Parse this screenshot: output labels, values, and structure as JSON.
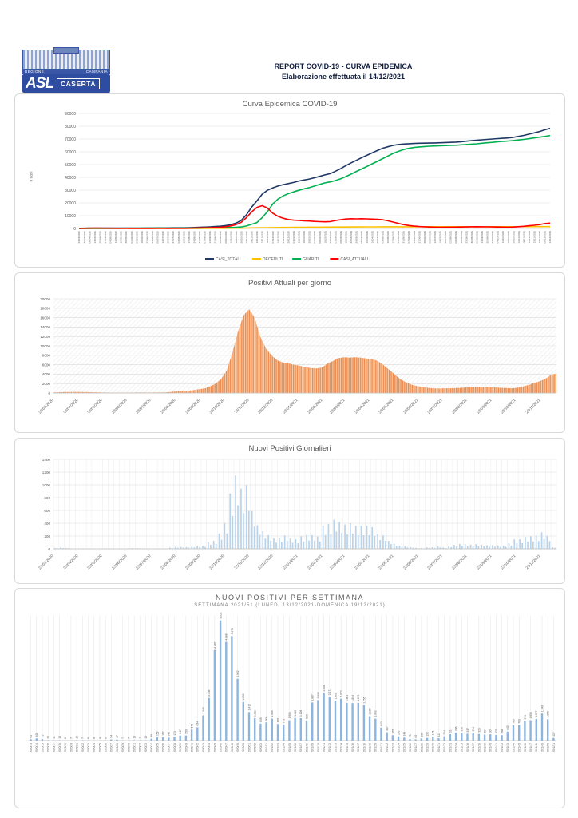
{
  "header": {
    "title_line1": "REPORT COVID-19 - CURVA EPIDEMICA",
    "title_line2": "Elaborazione effettuata il 14/12/2021",
    "logo": {
      "region": "REGIONE",
      "campania": "CAMPANIA",
      "asl": "ASL",
      "caserta": "CASERTA"
    }
  },
  "colors": {
    "casi_totali": "#203864",
    "deceduti": "#FFC000",
    "guariti": "#00B050",
    "casi_attuali": "#FF0000",
    "area_orange_dark": "#EC8A4E",
    "area_orange_light": "#F8CCA8",
    "bar_blue_daily": "#B9D3EA",
    "bar_blue_weekly": "#8DB4DC",
    "grid": "#d9d9d9",
    "grid_light": "#ebebeb",
    "axis_text": "#595959"
  },
  "chart_data": [
    {
      "type": "line",
      "title": "Curva Epidemica COVID-19",
      "ylabel": "n casi",
      "ylim": [
        0,
        90000
      ],
      "ytick_step": 10000,
      "legend_position": "bottom",
      "grid": true,
      "legend": [
        {
          "label": "CASI_TOTALI",
          "color": "#203864"
        },
        {
          "label": "DECEDUTI",
          "color": "#FFC000"
        },
        {
          "label": "GUARITI",
          "color": "#00B050"
        },
        {
          "label": "CASI_ATTUALI",
          "color": "#FF0000"
        }
      ],
      "x": [
        "23/03/2020",
        "30/03/2020",
        "06/04/2020",
        "13/04/2020",
        "20/04/2020",
        "27/04/2020",
        "04/05/2020",
        "11/05/2020",
        "18/05/2020",
        "25/05/2020",
        "01/06/2020",
        "08/06/2020",
        "15/06/2020",
        "22/06/2020",
        "29/06/2020",
        "06/07/2020",
        "13/07/2020",
        "20/07/2020",
        "27/07/2020",
        "03/08/2020",
        "10/08/2020",
        "17/08/2020",
        "24/08/2020",
        "31/08/2020",
        "07/09/2020",
        "14/09/2020",
        "21/09/2020",
        "28/09/2020",
        "05/10/2020",
        "12/10/2020",
        "19/10/2020",
        "26/10/2020",
        "02/11/2020",
        "09/11/2020",
        "16/11/2020",
        "23/11/2020",
        "30/11/2020",
        "07/12/2020",
        "14/12/2020",
        "21/12/2020",
        "28/12/2020",
        "04/01/2021",
        "11/01/2021",
        "18/01/2021",
        "25/01/2021",
        "01/02/2021",
        "08/02/2021",
        "15/02/2021",
        "22/02/2021",
        "01/03/2021",
        "08/03/2021",
        "15/03/2021",
        "22/03/2021",
        "29/03/2021",
        "05/04/2021",
        "12/04/2021",
        "19/04/2021",
        "26/04/2021",
        "03/05/2021",
        "10/05/2021",
        "17/05/2021",
        "24/05/2021",
        "31/05/2021",
        "07/06/2021",
        "14/06/2021",
        "21/06/2021",
        "28/06/2021",
        "05/07/2021",
        "12/07/2021",
        "19/07/2021",
        "26/07/2021",
        "02/08/2021",
        "09/08/2021",
        "16/08/2021",
        "23/08/2021",
        "30/08/2021",
        "06/09/2021",
        "13/09/2021",
        "20/09/2021",
        "27/09/2021",
        "04/10/2021",
        "11/10/2021",
        "18/10/2021",
        "25/10/2021",
        "01/11/2021",
        "08/11/2021",
        "15/11/2021",
        "22/11/2021",
        "29/11/2021",
        "06/12/2021",
        "13/12/2021"
      ],
      "series": [
        {
          "name": "CASI_TOTALI",
          "color": "#203864",
          "values": [
            62,
            167,
            239,
            260,
            271,
            284,
            292,
            299,
            317,
            324,
            330,
            338,
            342,
            348,
            402,
            449,
            456,
            463,
            481,
            492,
            505,
            601,
            759,
            921,
            1063,
            1236,
            1483,
            1733,
            2275,
            2929,
            4174,
            6282,
            10769,
            16721,
            21609,
            26788,
            29850,
            31759,
            33171,
            34282,
            35117,
            36022,
            37107,
            37927,
            38706,
            39714,
            40832,
            41940,
            42939,
            44826,
            46829,
            49187,
            51358,
            53319,
            55392,
            57253,
            59107,
            60978,
            62733,
            63932,
            65015,
            65657,
            66064,
            66329,
            66530,
            66678,
            66753,
            66813,
            66921,
            67053,
            67248,
            67361,
            67575,
            67889,
            68285,
            68661,
            68998,
            69372,
            69701,
            69995,
            70302,
            70577,
            70845,
            71288,
            72053,
            72822,
            73793,
            74801,
            75878,
            77218,
            78400
          ]
        },
        {
          "name": "DECEDUTI",
          "color": "#FFC000",
          "values": [
            10,
            14,
            18,
            22,
            26,
            30,
            34,
            38,
            42,
            46,
            50,
            52,
            54,
            56,
            58,
            60,
            62,
            64,
            66,
            68,
            70,
            74,
            78,
            84,
            92,
            100,
            115,
            130,
            150,
            180,
            220,
            280,
            350,
            420,
            500,
            580,
            650,
            710,
            760,
            800,
            840,
            880,
            915,
            945,
            975,
            1000,
            1025,
            1050,
            1075,
            1100,
            1125,
            1150,
            1175,
            1195,
            1215,
            1235,
            1255,
            1270,
            1285,
            1300,
            1310,
            1320,
            1328,
            1334,
            1340,
            1345,
            1350,
            1354,
            1358,
            1362,
            1366,
            1370,
            1373,
            1376,
            1379,
            1382,
            1385,
            1388,
            1391,
            1394,
            1397,
            1400,
            1403,
            1406,
            1410,
            1414,
            1418,
            1422,
            1426,
            1430,
            1434
          ]
        },
        {
          "name": "GUARITI",
          "color": "#00B050",
          "values": [
            0,
            3,
            21,
            18,
            15,
            54,
            78,
            111,
            155,
            178,
            200,
            216,
            228,
            232,
            264,
            289,
            294,
            309,
            315,
            314,
            315,
            327,
            331,
            387,
            471,
            536,
            568,
            653,
            725,
            749,
            954,
            1202,
            1919,
            3301,
            4609,
            8408,
            13200,
            19049,
            22911,
            25482,
            27277,
            28642,
            29892,
            30982,
            31931,
            33214,
            34507,
            35690,
            36464,
            37526,
            38904,
            40637,
            42583,
            44624,
            46577,
            48518,
            50552,
            52508,
            54648,
            56632,
            58705,
            60337,
            61736,
            62695,
            63390,
            63833,
            64103,
            64359,
            64563,
            64741,
            64882,
            64991,
            65152,
            65413,
            65706,
            65979,
            66263,
            66684,
            67060,
            67401,
            67805,
            68127,
            68442,
            68782,
            69243,
            69708,
            70275,
            70879,
            71452,
            71988,
            72766
          ]
        },
        {
          "name": "CASI_ATTUALI",
          "color": "#FF0000",
          "values": [
            100,
            150,
            200,
            220,
            230,
            200,
            180,
            150,
            120,
            100,
            80,
            70,
            60,
            60,
            80,
            100,
            100,
            90,
            100,
            110,
            120,
            200,
            350,
            450,
            500,
            600,
            800,
            950,
            1400,
            2000,
            3000,
            4800,
            8500,
            13000,
            16500,
            17800,
            16000,
            12000,
            9500,
            8000,
            7000,
            6500,
            6300,
            6000,
            5800,
            5500,
            5300,
            5200,
            5400,
            6200,
            6800,
            7400,
            7600,
            7500,
            7600,
            7500,
            7300,
            7200,
            6800,
            6000,
            5000,
            4000,
            3000,
            2300,
            1800,
            1500,
            1300,
            1100,
            1000,
            950,
            1000,
            1000,
            1050,
            1100,
            1200,
            1300,
            1350,
            1300,
            1250,
            1200,
            1100,
            1050,
            1000,
            1100,
            1400,
            1700,
            2100,
            2500,
            3000,
            3800,
            4200
          ]
        }
      ]
    },
    {
      "type": "area",
      "title": "Positivi Attuali per giorno",
      "ylim": [
        0,
        20000
      ],
      "ytick_step": 2000,
      "grid": "horizontal+hatch",
      "xticklabels": [
        "23/03/2020",
        "23/04/2020",
        "23/05/2020",
        "23/06/2020",
        "23/07/2020",
        "23/08/2020",
        "23/09/2020",
        "23/10/2020",
        "23/11/2020",
        "23/12/2020",
        "23/01/2021",
        "23/02/2021",
        "23/03/2021",
        "23/04/2021",
        "23/05/2021",
        "23/06/2021",
        "23/07/2021",
        "23/08/2021",
        "23/09/2021",
        "23/10/2021",
        "23/11/2021"
      ],
      "xtick_days": [
        0,
        31,
        61,
        92,
        122,
        153,
        184,
        214,
        245,
        275,
        306,
        337,
        365,
        396,
        426,
        457,
        487,
        518,
        549,
        579,
        610
      ],
      "axis_span_days": 630,
      "values": [
        100,
        150,
        200,
        220,
        230,
        200,
        180,
        150,
        120,
        100,
        80,
        70,
        60,
        60,
        80,
        100,
        100,
        90,
        100,
        110,
        120,
        200,
        350,
        450,
        500,
        600,
        800,
        950,
        1400,
        2000,
        3000,
        4800,
        8500,
        13000,
        16500,
        17800,
        16000,
        12000,
        9500,
        8000,
        7000,
        6500,
        6300,
        6000,
        5800,
        5500,
        5300,
        5200,
        5400,
        6200,
        6800,
        7400,
        7600,
        7500,
        7600,
        7500,
        7300,
        7200,
        6800,
        6000,
        5000,
        4000,
        3000,
        2300,
        1800,
        1500,
        1300,
        1100,
        1000,
        950,
        1000,
        1000,
        1050,
        1100,
        1200,
        1300,
        1350,
        1300,
        1250,
        1200,
        1100,
        1050,
        1000,
        1100,
        1400,
        1700,
        2100,
        2500,
        3000,
        3800,
        4200
      ]
    },
    {
      "type": "bar",
      "title": "Nuovi Positivi Giornalieri",
      "ylim": [
        0,
        1400
      ],
      "ytick_step": 200,
      "grid": "both",
      "xticklabels": [
        "23/03/2020",
        "23/04/2020",
        "23/05/2020",
        "23/06/2020",
        "23/07/2020",
        "23/08/2020",
        "23/09/2020",
        "23/10/2020",
        "23/11/2020",
        "23/12/2020",
        "23/01/2021",
        "23/02/2021",
        "23/03/2021",
        "23/04/2021",
        "23/05/2021",
        "23/06/2021",
        "23/07/2021",
        "23/08/2021",
        "23/09/2021",
        "23/10/2021",
        "23/11/2021"
      ],
      "xtick_days": [
        0,
        31,
        61,
        92,
        122,
        153,
        184,
        214,
        245,
        275,
        306,
        337,
        365,
        396,
        426,
        457,
        487,
        518,
        549,
        579,
        610
      ],
      "axis_span_days": 630,
      "weekly_totals": [
        62,
        105,
        72,
        21,
        11,
        13,
        8,
        7,
        18,
        7,
        6,
        8,
        4,
        6,
        54,
        47,
        7,
        7,
        18,
        11,
        13,
        96,
        158,
        162,
        142,
        173,
        247,
        250,
        542,
        654,
        1245,
        2108,
        4487,
        5952,
        4888,
        5179,
        3062,
        1909,
        1412,
        1111,
        835,
        905,
        1085,
        820,
        779,
        1008,
        1118,
        1108,
        999,
        1887,
        2003,
        2358,
        2171,
        1961,
        2073,
        1861,
        1854,
        1871,
        1755,
        1199,
        1083,
        642,
        407,
        265,
        201,
        148,
        75,
        60,
        108,
        132,
        195,
        113,
        214,
        314,
        396,
        376,
        337,
        374,
        329,
        294,
        307,
        275,
        268,
        443,
        765,
        769,
        971,
        1008,
        1077,
        1340,
        1055,
        127
      ]
    },
    {
      "type": "bar",
      "title": "NUOVI POSITIVI PER SETTIMANA",
      "subtitle": "SETTIMANA 2021/51 (LUNEDÌ 13/12/2021-DOMENICA 19/12/2021)",
      "data_labels": true,
      "grid": "vertical",
      "categories": [
        "2020/13",
        "2020/14",
        "2020/15",
        "2020/16",
        "2020/17",
        "2020/18",
        "2020/19",
        "2020/20",
        "2020/21",
        "2020/22",
        "2020/23",
        "2020/24",
        "2020/25",
        "2020/26",
        "2020/27",
        "2020/28",
        "2020/29",
        "2020/30",
        "2020/31",
        "2020/32",
        "2020/33",
        "2020/34",
        "2020/35",
        "2020/36",
        "2020/37",
        "2020/38",
        "2020/39",
        "2020/40",
        "2020/41",
        "2020/42",
        "2020/43",
        "2020/44",
        "2020/45",
        "2020/46",
        "2020/47",
        "2020/48",
        "2020/49",
        "2020/50",
        "2020/51",
        "2020/52",
        "2020/53",
        "2021/01",
        "2021/02",
        "2021/03",
        "2021/04",
        "2021/05",
        "2021/06",
        "2021/07",
        "2021/08",
        "2021/09",
        "2021/10",
        "2021/11",
        "2021/12",
        "2021/13",
        "2021/14",
        "2021/15",
        "2021/16",
        "2021/17",
        "2021/18",
        "2021/19",
        "2021/20",
        "2021/21",
        "2021/22",
        "2021/23",
        "2021/24",
        "2021/25",
        "2021/26",
        "2021/27",
        "2021/28",
        "2021/29",
        "2021/30",
        "2021/31",
        "2021/32",
        "2021/33",
        "2021/34",
        "2021/35",
        "2021/36",
        "2021/37",
        "2021/38",
        "2021/39",
        "2021/40",
        "2021/41",
        "2021/42",
        "2021/43",
        "2021/44",
        "2021/45",
        "2021/46",
        "2021/47",
        "2021/48",
        "2021/49",
        "2021/50",
        "2021/51"
      ],
      "values": [
        62,
        105,
        72,
        21,
        11,
        13,
        8,
        7,
        18,
        7,
        6,
        8,
        4,
        6,
        54,
        47,
        7,
        7,
        18,
        11,
        13,
        96,
        158,
        162,
        142,
        173,
        247,
        250,
        542,
        654,
        1245,
        2108,
        4487,
        5952,
        4888,
        5179,
        3062,
        1909,
        1412,
        1111,
        835,
        905,
        1085,
        820,
        779,
        1008,
        1118,
        1108,
        999,
        1887,
        2003,
        2358,
        2171,
        1961,
        2073,
        1861,
        1854,
        1871,
        1755,
        1199,
        1083,
        642,
        407,
        265,
        201,
        148,
        75,
        60,
        108,
        132,
        195,
        113,
        214,
        314,
        396,
        376,
        337,
        374,
        329,
        294,
        307,
        275,
        268,
        443,
        765,
        769,
        971,
        1008,
        1077,
        1340,
        1055,
        127
      ]
    }
  ]
}
